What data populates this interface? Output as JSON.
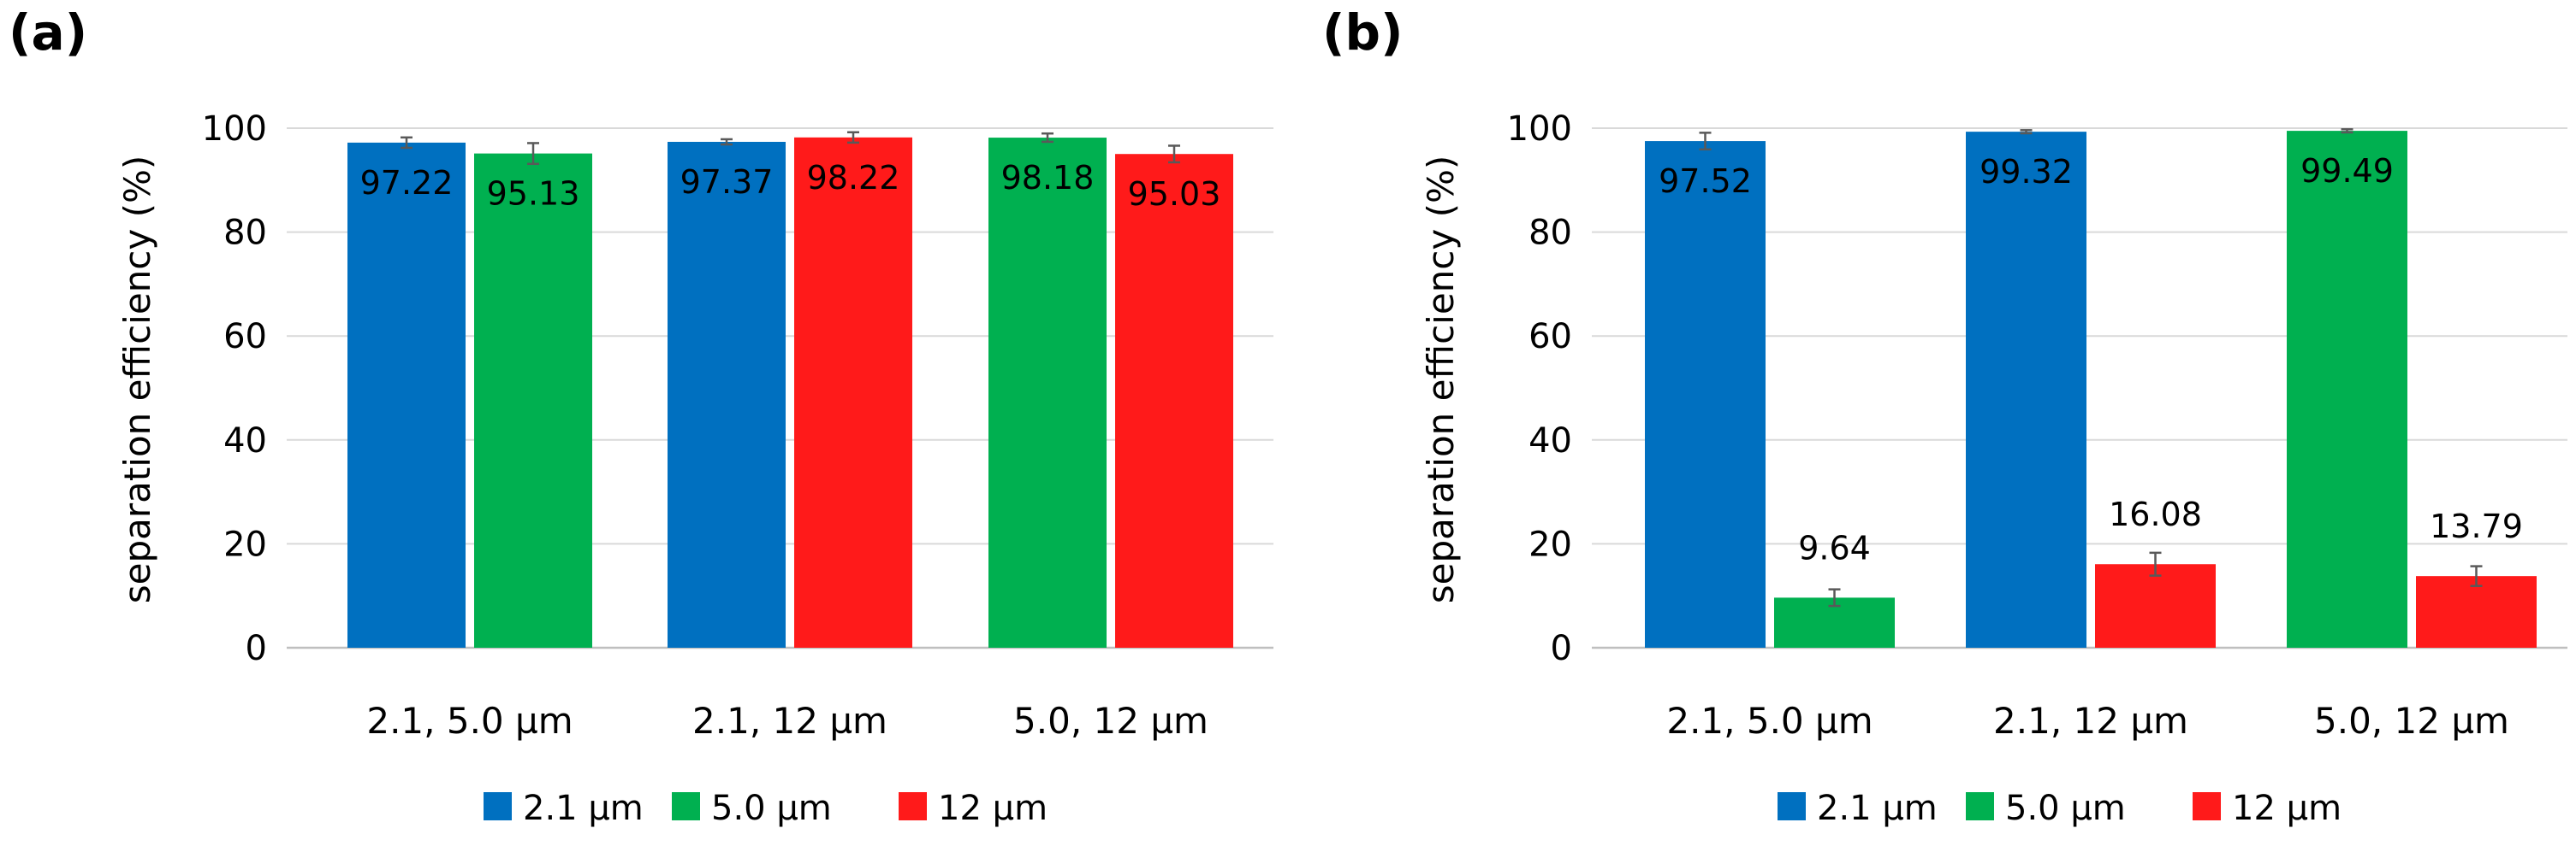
{
  "chart_data": [
    {
      "type": "bar",
      "panel_label": "(a)",
      "categories": [
        "2.1, 5.0 µm",
        "2.1, 12 µm",
        "5.0, 12 µm"
      ],
      "ylabel": "separation efficiency (%)",
      "ylim": [
        0,
        100
      ],
      "yticks": [
        0,
        20,
        40,
        60,
        80,
        100
      ],
      "grid": true,
      "label_position": "inside",
      "groups": [
        {
          "category": "2.1, 5.0 µm",
          "bars": [
            {
              "series": "2.1 µm",
              "value": 97.22,
              "label": "97.22",
              "error": 1.0
            },
            {
              "series": "5.0 µm",
              "value": 95.13,
              "label": "95.13",
              "error": 2.0
            }
          ]
        },
        {
          "category": "2.1, 12 µm",
          "bars": [
            {
              "series": "2.1 µm",
              "value": 97.37,
              "label": "97.37",
              "error": 0.5
            },
            {
              "series": "12 µm",
              "value": 98.22,
              "label": "98.22",
              "error": 1.0
            }
          ]
        },
        {
          "category": "5.0, 12 µm",
          "bars": [
            {
              "series": "5.0 µm",
              "value": 98.18,
              "label": "98.18",
              "error": 0.8
            },
            {
              "series": "12 µm",
              "value": 95.03,
              "label": "95.03",
              "error": 1.6
            }
          ]
        }
      ],
      "legend": [
        {
          "name": "2.1 µm",
          "color": "#0070C0"
        },
        {
          "name": "5.0 µm",
          "color": "#00B050"
        },
        {
          "name": "12 µm",
          "color": "#FF1A1A"
        }
      ]
    },
    {
      "type": "bar",
      "panel_label": "(b)",
      "categories": [
        "2.1, 5.0 µm",
        "2.1, 12 µm",
        "5.0, 12 µm"
      ],
      "ylabel": "separation efficiency (%)",
      "ylim": [
        0,
        100
      ],
      "yticks": [
        0,
        20,
        40,
        60,
        80,
        100
      ],
      "grid": true,
      "label_position": "mixed",
      "groups": [
        {
          "category": "2.1, 5.0 µm",
          "bars": [
            {
              "series": "2.1 µm",
              "value": 97.52,
              "label": "97.52",
              "error": 1.6
            },
            {
              "series": "5.0 µm",
              "value": 9.64,
              "label": "9.64",
              "error": 1.6
            }
          ]
        },
        {
          "category": "2.1, 12 µm",
          "bars": [
            {
              "series": "2.1 µm",
              "value": 99.32,
              "label": "99.32",
              "error": 0.3
            },
            {
              "series": "12 µm",
              "value": 16.08,
              "label": "16.08",
              "error": 2.2
            }
          ]
        },
        {
          "category": "5.0, 12 µm",
          "bars": [
            {
              "series": "5.0 µm",
              "value": 99.49,
              "label": "99.49",
              "error": 0.3
            },
            {
              "series": "12 µm",
              "value": 13.79,
              "label": "13.79",
              "error": 1.9
            }
          ]
        }
      ],
      "legend": [
        {
          "name": "2.1 µm",
          "color": "#0070C0"
        },
        {
          "name": "5.0 µm",
          "color": "#00B050"
        },
        {
          "name": "12 µm",
          "color": "#FF1A1A"
        }
      ]
    }
  ]
}
